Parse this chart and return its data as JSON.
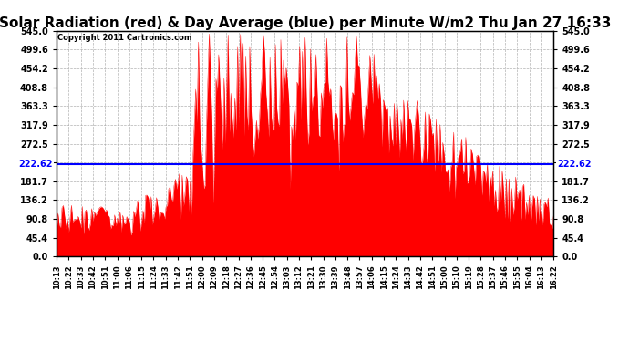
{
  "title": "Solar Radiation (red) & Day Average (blue) per Minute W/m2 Thu Jan 27 16:33",
  "copyright": "Copyright 2011 Cartronics.com",
  "avg_value": 222.62,
  "y_min": 0.0,
  "y_max": 545.0,
  "y_ticks": [
    0.0,
    45.4,
    90.8,
    136.2,
    181.7,
    227.1,
    272.5,
    317.9,
    363.3,
    408.8,
    454.2,
    499.6,
    545.0
  ],
  "fill_color": "#FF0000",
  "line_color": "#0000FF",
  "bg_color": "#FFFFFF",
  "grid_color": "#AAAAAA",
  "title_fontsize": 11,
  "x_tick_labels": [
    "10:13",
    "10:22",
    "10:33",
    "10:42",
    "10:51",
    "11:00",
    "11:06",
    "11:15",
    "11:24",
    "11:33",
    "11:42",
    "11:51",
    "12:00",
    "12:09",
    "12:18",
    "12:27",
    "12:36",
    "12:45",
    "12:54",
    "13:03",
    "13:12",
    "13:21",
    "13:30",
    "13:39",
    "13:48",
    "13:57",
    "14:06",
    "14:15",
    "14:24",
    "14:33",
    "14:42",
    "14:51",
    "15:00",
    "15:10",
    "15:19",
    "15:28",
    "15:37",
    "15:46",
    "15:55",
    "16:04",
    "16:13",
    "16:22"
  ]
}
